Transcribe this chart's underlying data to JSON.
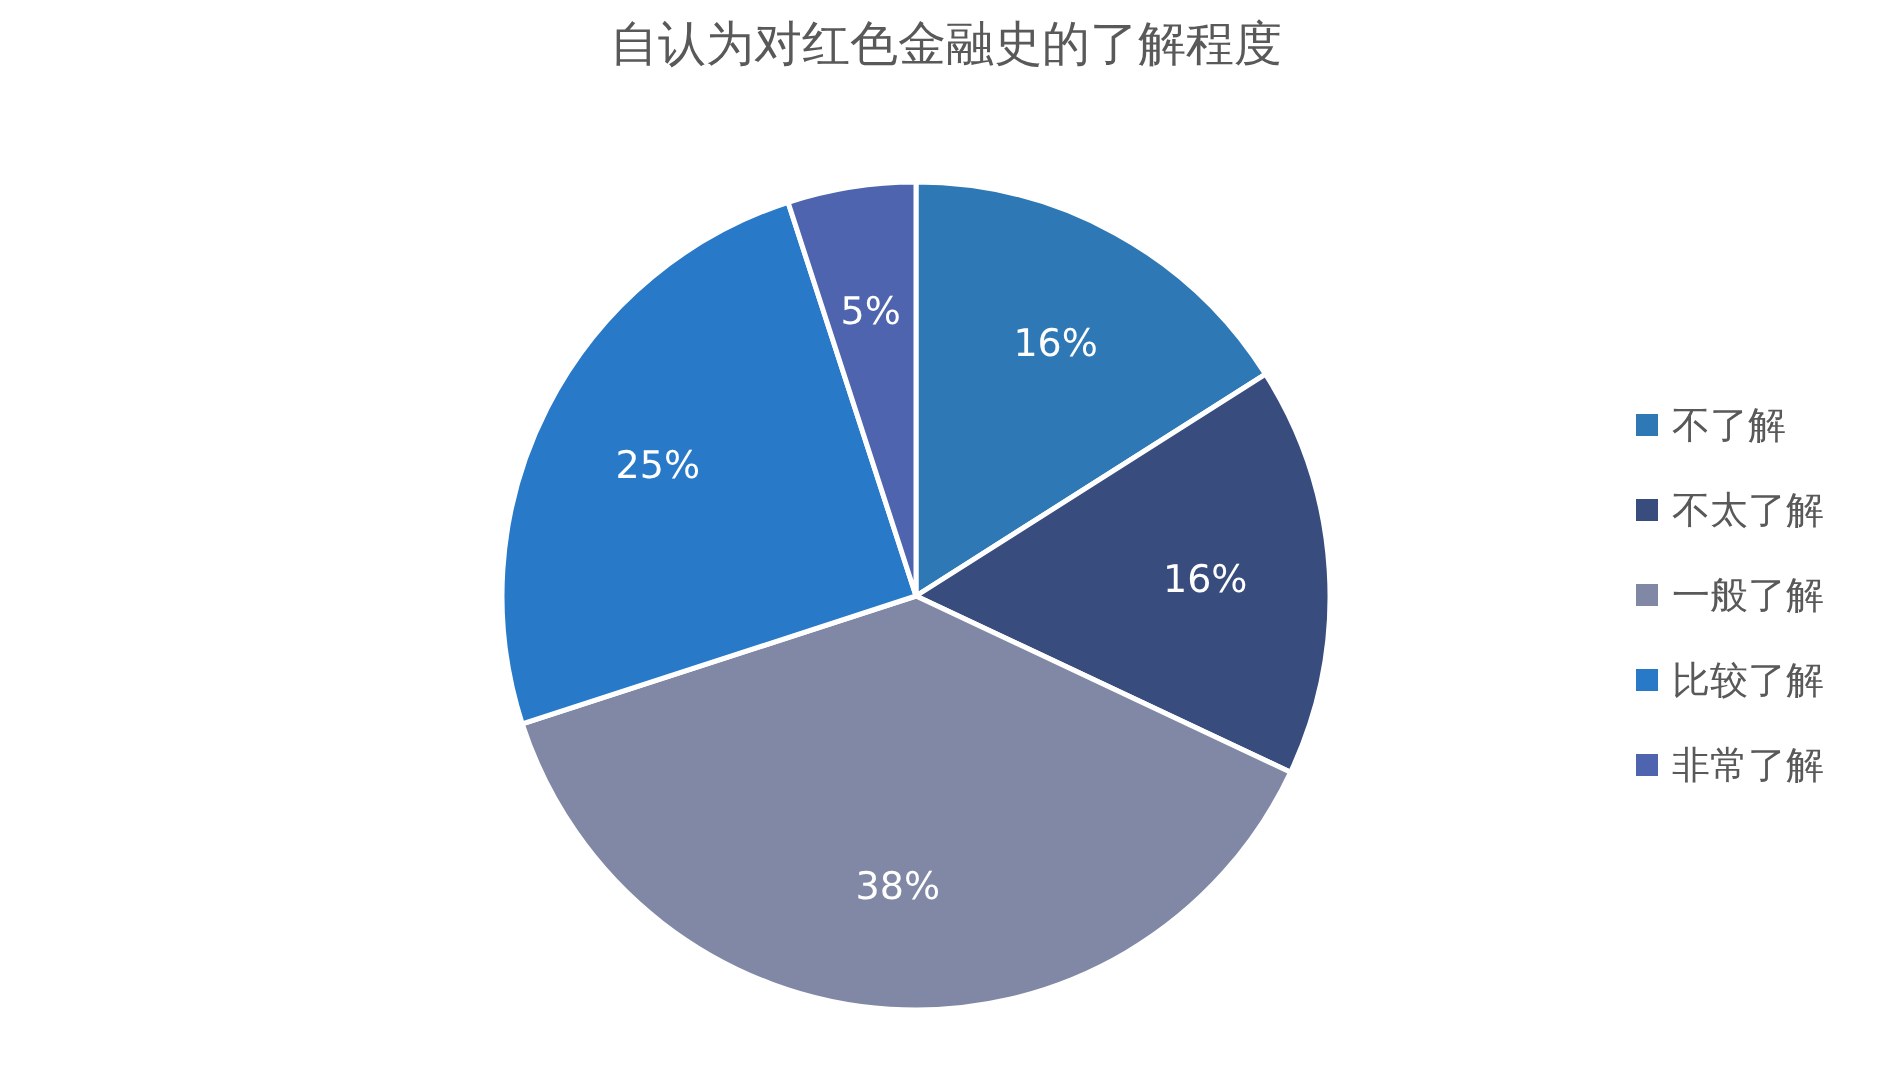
{
  "chart_data": {
    "type": "pie",
    "title": "自认为对红色金融史的了解程度",
    "categories": [
      "不了解",
      "不太了解",
      "一般了解",
      "比较了解",
      "非常了解"
    ],
    "values": [
      16,
      16,
      38,
      25,
      5
    ],
    "value_labels": [
      "16%",
      "16%",
      "38%",
      "25%",
      "5%"
    ],
    "colors": [
      "#2e78b5",
      "#384c7e",
      "#8088a5",
      "#2979c9",
      "#4e64ae"
    ],
    "legend": "right"
  }
}
